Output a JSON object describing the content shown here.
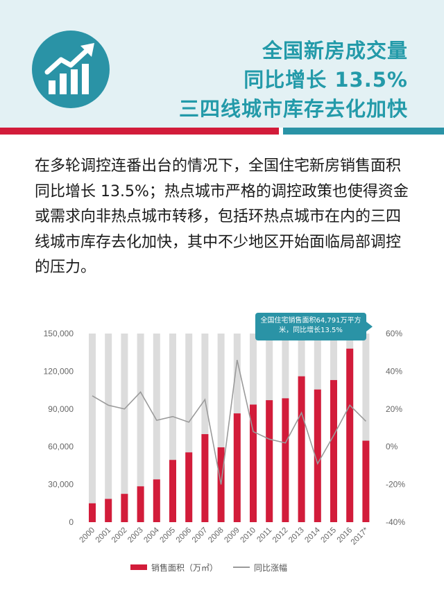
{
  "header": {
    "title_lines": [
      "全国新房成交量",
      "同比增长 13.5%",
      "三四线城市库存去化加快"
    ],
    "logo_icon": "rising-chart-icon",
    "colors": {
      "teal": "#2a93a6",
      "red": "#d21c3a",
      "header_bg": "#e3f1f4"
    }
  },
  "body": {
    "paragraph": "在多轮调控连番出台的情况下，全国住宅新房销售面积同比增长 13.5%；热点城市严格的调控政策也使得资金或需求向非热点城市转移，包括环热点城市在内的三四线城市库存去化加快，其中不少地区开始面临局部调控的压力。"
  },
  "chart_data": {
    "type": "bar",
    "categories": [
      "2000",
      "2001",
      "2002",
      "2003",
      "2004",
      "2005",
      "2006",
      "2007",
      "2008",
      "2009",
      "2010",
      "2011",
      "2012",
      "2013",
      "2014",
      "2015",
      "2016",
      "2017*"
    ],
    "series": [
      {
        "name": "销售面积（万㎡）",
        "type": "bar",
        "axis": "left",
        "values": [
          15000,
          18500,
          22500,
          28500,
          34000,
          49500,
          55500,
          70000,
          59500,
          86500,
          93500,
          97000,
          98500,
          116000,
          105500,
          113000,
          138000,
          64791
        ]
      },
      {
        "name": "同比涨幅",
        "type": "line",
        "axis": "right",
        "values": [
          27,
          22,
          20,
          29,
          14,
          16,
          13,
          25,
          -20,
          46,
          8,
          4,
          2,
          18,
          -9,
          6,
          22,
          13.5
        ]
      }
    ],
    "y_left": {
      "ticks": [
        "150,000",
        "120,000",
        "90,000",
        "60,000",
        "30,000",
        "0"
      ],
      "lim": [
        0,
        150000
      ]
    },
    "y_right": {
      "ticks": [
        "60%",
        "40%",
        "20%",
        "0%",
        "-20%",
        "-40%"
      ],
      "lim": [
        -40,
        60
      ]
    },
    "background_bar_max": 150000,
    "annotation": "全国住宅销售面积64,791万平方米，同比增长13.5%",
    "legend": {
      "bar_label": "销售面积（万㎡）",
      "line_label": "同比涨幅"
    },
    "colors": {
      "bar": "#d21c3a",
      "bg_bar": "#dcdcdc",
      "line": "#9a9a9a",
      "axis_text": "#666666"
    }
  }
}
